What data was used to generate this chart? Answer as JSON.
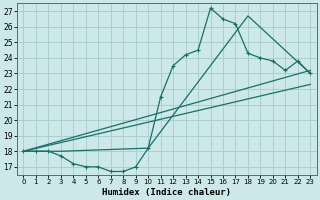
{
  "xlabel": "Humidex (Indice chaleur)",
  "background_color": "#cce8e8",
  "grid_color": "#aacfcf",
  "line_color": "#1a6e6a",
  "xlim": [
    -0.5,
    23.5
  ],
  "ylim": [
    16.5,
    27.5
  ],
  "xticks": [
    0,
    1,
    2,
    3,
    4,
    5,
    6,
    7,
    8,
    9,
    10,
    11,
    12,
    13,
    14,
    15,
    16,
    17,
    18,
    19,
    20,
    21,
    22,
    23
  ],
  "yticks": [
    17,
    18,
    19,
    20,
    21,
    22,
    23,
    24,
    25,
    26,
    27
  ],
  "main_x": [
    0,
    1,
    2,
    3,
    4,
    5,
    6,
    7,
    8,
    9,
    10,
    11,
    12,
    13,
    14,
    15,
    16,
    17,
    18,
    19,
    20,
    21,
    22,
    23
  ],
  "main_y": [
    18,
    18,
    18,
    17.7,
    17.2,
    17.0,
    17.0,
    16.7,
    16.7,
    17.0,
    18.2,
    21.5,
    23.5,
    24.2,
    24.5,
    27.2,
    26.5,
    26.2,
    24.3,
    24.0,
    23.8,
    23.2,
    23.8,
    23.0
  ],
  "line1_x": [
    0,
    23
  ],
  "line1_y": [
    18,
    23.2
  ],
  "line2_x": [
    0,
    23
  ],
  "line2_y": [
    18,
    22.3
  ],
  "tri_x": [
    0,
    3,
    10,
    18,
    23
  ],
  "tri_y": [
    18,
    18,
    18.2,
    26.7,
    23.0
  ]
}
